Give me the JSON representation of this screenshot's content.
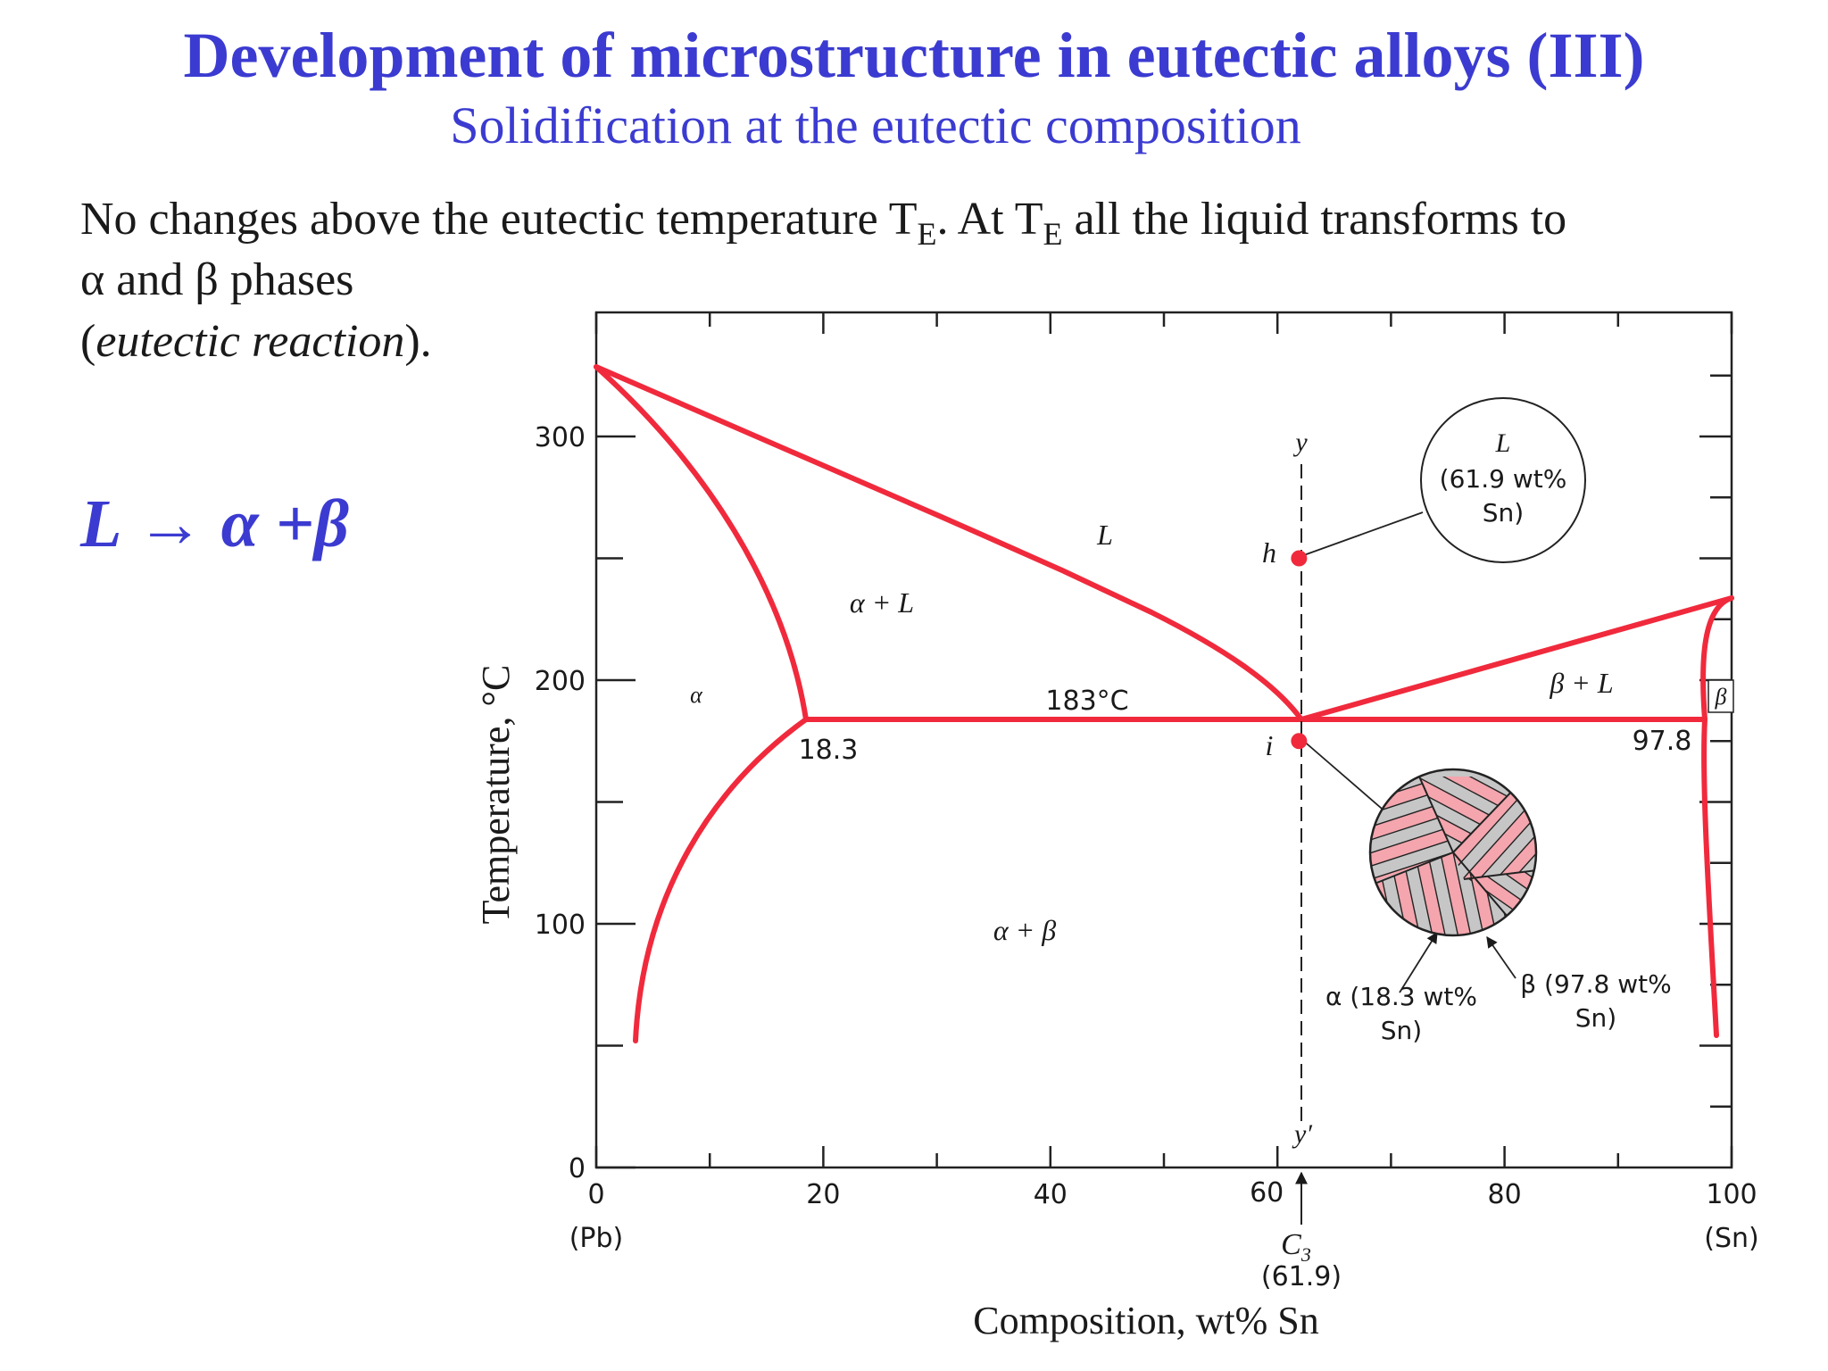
{
  "slide": {
    "title": "Development of microstructure in eutectic alloys (III)",
    "subtitle": "Solidification at the eutectic composition",
    "body_part1": "No changes above the eutectic temperature T",
    "body_sub": "E",
    "body_part2": ".   At T",
    "body_part3": " all the liquid transforms to",
    "body_line2": "α and β phases",
    "body_line3_open": "(",
    "body_line3_italic": "eutectic reaction",
    "body_line3_close": ").",
    "reaction": "L → α +β",
    "title_color": "#3b3bd1",
    "curve_color": "#f02a3c"
  },
  "diagram": {
    "ylabel": "Temperature, °C",
    "xlabel": "Composition, wt% Sn",
    "xlim": [
      0,
      100
    ],
    "ylim": [
      0,
      327
    ],
    "x_ticks": [
      "0",
      "20",
      "40",
      "60",
      "80",
      "100"
    ],
    "y_ticks": [
      "0",
      "100",
      "200",
      "300"
    ],
    "x_end_left": "(Pb)",
    "x_end_right": "(Sn)",
    "eutectic_temp_label": "183°C",
    "eutectic_temperature": 183,
    "alpha_limit_label": "18.3",
    "alpha_limit": 18.3,
    "beta_limit_label": "97.8",
    "beta_limit": 97.8,
    "eutectic_composition": 61.9,
    "region_labels": {
      "L": "L",
      "alpha_L": "α + L",
      "alpha": "α",
      "beta_L": "β + L",
      "beta": "β",
      "alpha_beta": "α + β"
    },
    "path_labels": {
      "y": "y",
      "y_prime": "y′",
      "h": "h",
      "i": "i",
      "c3": "C",
      "c3_sub": "3",
      "c3_value": "(61.9)",
      "c3_tick": "60"
    },
    "point_h": {
      "comp": 61.9,
      "temp": 250
    },
    "point_i": {
      "comp": 61.9,
      "temp": 175
    },
    "liquid_callout": {
      "line1": "L",
      "line2": "(61.9 wt%",
      "line3": "Sn)"
    },
    "alpha_callout": {
      "line1": "α (18.3 wt%",
      "line2": "Sn)"
    },
    "beta_callout": {
      "line1": "β (97.8 wt%",
      "line2": "Sn)"
    }
  }
}
